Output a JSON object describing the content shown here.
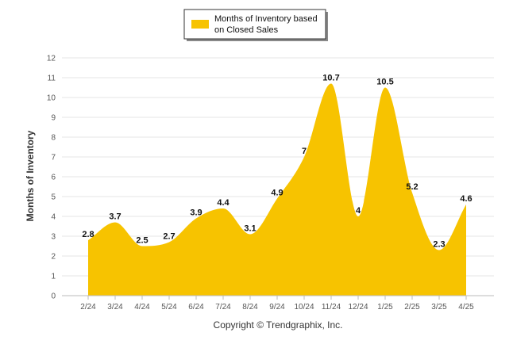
{
  "chart_data": {
    "type": "area",
    "title": "",
    "ylabel": "Months of Inventory",
    "xlabel": "",
    "categories": [
      "2/24",
      "3/24",
      "4/24",
      "5/24",
      "6/24",
      "7/24",
      "8/24",
      "9/24",
      "10/24",
      "11/24",
      "12/24",
      "1/25",
      "2/25",
      "3/25",
      "4/25"
    ],
    "series": [
      {
        "name": "Months of Inventory based on Closed Sales",
        "values": [
          2.8,
          3.7,
          2.5,
          2.7,
          3.9,
          4.4,
          3.1,
          4.9,
          7,
          10.7,
          4,
          10.5,
          5.2,
          2.3,
          4.6
        ],
        "labels": [
          "2.8",
          "3.7",
          "2.5",
          "2.7",
          "3.9",
          "4.4",
          "3.1",
          "4.9",
          "7",
          "10.7",
          "4",
          "10.5",
          "5.2",
          "2.3",
          "4.6"
        ]
      }
    ],
    "ylim": [
      0,
      12
    ],
    "yticks": [
      "0",
      "1",
      "2",
      "3",
      "4",
      "5",
      "6",
      "7",
      "8",
      "9",
      "10",
      "11",
      "12"
    ],
    "grid": true,
    "legend_position": "top-center",
    "colors": {
      "fill": "#F7C300",
      "grid": "#E6E6E6",
      "axis": "#BBBBBB"
    }
  },
  "legend": {
    "line1": "Months of Inventory based",
    "line2": "on Closed Sales"
  },
  "footer": "Copyright © Trendgraphix, Inc."
}
